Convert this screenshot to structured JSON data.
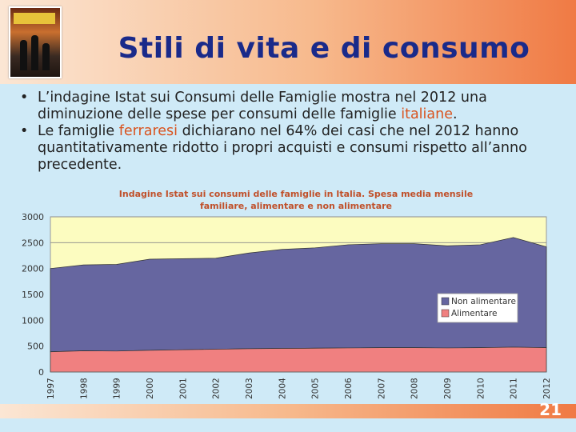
{
  "slide": {
    "title": "Stili di vita e di consumo",
    "page_number": "21"
  },
  "bullets": [
    {
      "before": "L’indagine Istat sui Consumi delle Famiglie mostra nel 2012 una diminuzione delle spese per consumi delle famiglie ",
      "highlight": "italiane",
      "after": "."
    },
    {
      "before": "Le famiglie ",
      "highlight": "ferraresi",
      "after": " dichiarano nel 64% dei casi che nel 2012 hanno quantitativamente ridotto i propri acquisti e consumi rispetto all’anno precedente."
    }
  ],
  "colors": {
    "highlight": "#d9531e",
    "title": "#1a2a8a",
    "non_alimentare": "#6666a0",
    "alimentare": "#f08080",
    "plot_bg": "#fcfcc0"
  },
  "chart_data": {
    "type": "area",
    "stacked": true,
    "title_line1": "Indagine Istat sui consumi delle famiglie in Italia. Spesa media mensile",
    "title_line2": "familiare, alimentare e non alimentare",
    "x": [
      "1997",
      "1998",
      "1999",
      "2000",
      "2001",
      "2002",
      "2003",
      "2004",
      "2005",
      "2006",
      "2007",
      "2008",
      "2009",
      "2010",
      "2011",
      "2012"
    ],
    "series": [
      {
        "name": "Alimentare",
        "values": [
          390,
          410,
          405,
          420,
          430,
          440,
          450,
          455,
          460,
          465,
          470,
          470,
          465,
          470,
          480,
          470
        ]
      },
      {
        "name": "Non alimentare",
        "values": [
          1610,
          1660,
          1675,
          1760,
          1760,
          1760,
          1850,
          1915,
          1940,
          1995,
          2010,
          2010,
          1975,
          1990,
          2120,
          1950
        ]
      }
    ],
    "ylim": [
      0,
      3000
    ],
    "yticks": [
      0,
      500,
      1000,
      1500,
      2000,
      2500,
      3000
    ],
    "grid": true,
    "legend": "right"
  }
}
